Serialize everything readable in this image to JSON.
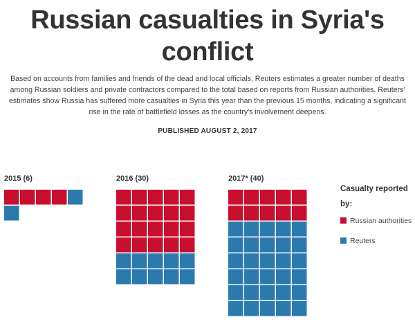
{
  "header": {
    "title": "Russian casualties in Syria's conflict",
    "lede": "Based on accounts from families and friends of the dead and local officials, Reuters estimates a greater number of deaths among Russian soldiers and private contractors compared to the total based on reports from Russian authorities. Reuters' estimates show Russia has suffered more casualties in Syria this year than the previous 15 months, indicating a significant rise in the rate of battlefield losses as the country's involvement deepens.",
    "published": "PUBLISHED AUGUST 2, 2017"
  },
  "colors": {
    "russian": "#c8102e",
    "reuters": "#2a7ab0"
  },
  "chart_data": {
    "type": "waffle",
    "unit": "1 square = 1 casualty",
    "groups": [
      {
        "label": "2015 (6)",
        "total": 6,
        "russian_authorities": 4,
        "reuters": 2
      },
      {
        "label": "2016 (30)",
        "total": 30,
        "russian_authorities": 20,
        "reuters": 10
      },
      {
        "label": "2017* (40)",
        "total": 40,
        "russian_authorities": 10,
        "reuters": 30
      }
    ],
    "legend": {
      "title": "Casualty reported by:",
      "items": [
        {
          "key": "russian",
          "label": "Russian authorities"
        },
        {
          "key": "reuters",
          "label": "Reuters"
        }
      ]
    }
  }
}
